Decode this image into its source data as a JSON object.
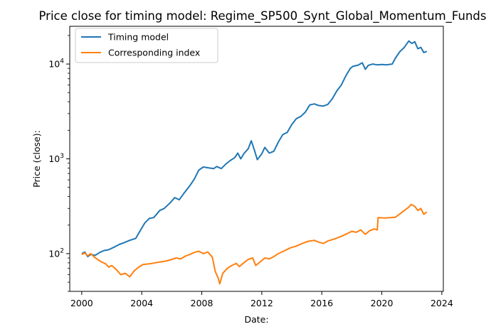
{
  "chart_data": {
    "type": "line",
    "title": "Price close for timing model: Regime_SP500_Synt_Global_Momentum_Funds",
    "xlabel": "Date:",
    "ylabel": "Price (close):",
    "yscale": "log",
    "xlim": [
      1999.2,
      2024.1
    ],
    "ylim": [
      40,
      25000
    ],
    "x_ticks": [
      2000,
      2004,
      2008,
      2012,
      2016,
      2020,
      2024
    ],
    "x_tick_labels": [
      "2000",
      "2004",
      "2008",
      "2012",
      "2016",
      "2020",
      "2024"
    ],
    "y_ticks": [
      100,
      1000,
      10000
    ],
    "y_tick_base": "10",
    "y_tick_exponents": [
      "2",
      "3",
      "4"
    ],
    "legend_position": "upper-left",
    "grid": false,
    "series": [
      {
        "name": "Timing model",
        "color": "#1f77b4",
        "points": [
          [
            2000.0,
            100
          ],
          [
            2000.2,
            104
          ],
          [
            2000.4,
            93
          ],
          [
            2000.6,
            98
          ],
          [
            2000.9,
            96
          ],
          [
            2001.2,
            103
          ],
          [
            2001.5,
            108
          ],
          [
            2001.8,
            110
          ],
          [
            2002.2,
            118
          ],
          [
            2002.5,
            125
          ],
          [
            2002.8,
            130
          ],
          [
            2003.2,
            138
          ],
          [
            2003.6,
            145
          ],
          [
            2003.9,
            175
          ],
          [
            2004.2,
            210
          ],
          [
            2004.5,
            235
          ],
          [
            2004.8,
            240
          ],
          [
            2005.2,
            285
          ],
          [
            2005.5,
            300
          ],
          [
            2005.9,
            345
          ],
          [
            2006.2,
            390
          ],
          [
            2006.5,
            370
          ],
          [
            2006.8,
            430
          ],
          [
            2007.2,
            520
          ],
          [
            2007.5,
            610
          ],
          [
            2007.8,
            760
          ],
          [
            2008.1,
            820
          ],
          [
            2008.5,
            800
          ],
          [
            2008.8,
            790
          ],
          [
            2009.0,
            830
          ],
          [
            2009.3,
            790
          ],
          [
            2009.6,
            880
          ],
          [
            2009.9,
            960
          ],
          [
            2010.2,
            1030
          ],
          [
            2010.4,
            1150
          ],
          [
            2010.6,
            1000
          ],
          [
            2010.8,
            1130
          ],
          [
            2011.1,
            1280
          ],
          [
            2011.3,
            1550
          ],
          [
            2011.5,
            1250
          ],
          [
            2011.7,
            980
          ],
          [
            2012.0,
            1130
          ],
          [
            2012.2,
            1320
          ],
          [
            2012.5,
            1150
          ],
          [
            2012.8,
            1200
          ],
          [
            2013.1,
            1500
          ],
          [
            2013.4,
            1800
          ],
          [
            2013.7,
            1900
          ],
          [
            2014.0,
            2300
          ],
          [
            2014.3,
            2650
          ],
          [
            2014.6,
            2800
          ],
          [
            2014.9,
            3100
          ],
          [
            2015.2,
            3700
          ],
          [
            2015.5,
            3800
          ],
          [
            2015.8,
            3650
          ],
          [
            2016.1,
            3600
          ],
          [
            2016.4,
            3750
          ],
          [
            2016.7,
            4300
          ],
          [
            2017.0,
            5200
          ],
          [
            2017.3,
            6000
          ],
          [
            2017.6,
            7500
          ],
          [
            2017.9,
            9000
          ],
          [
            2018.1,
            9500
          ],
          [
            2018.4,
            9700
          ],
          [
            2018.7,
            10300
          ],
          [
            2018.9,
            8800
          ],
          [
            2019.1,
            9700
          ],
          [
            2019.4,
            10000
          ],
          [
            2019.7,
            9800
          ],
          [
            2020.0,
            9900
          ],
          [
            2020.3,
            9800
          ],
          [
            2020.7,
            10000
          ],
          [
            2020.9,
            11500
          ],
          [
            2021.2,
            13500
          ],
          [
            2021.5,
            15000
          ],
          [
            2021.8,
            17500
          ],
          [
            2022.0,
            16500
          ],
          [
            2022.2,
            17200
          ],
          [
            2022.4,
            14500
          ],
          [
            2022.6,
            15000
          ],
          [
            2022.8,
            13200
          ],
          [
            2023.0,
            13600
          ]
        ]
      },
      {
        "name": "Corresponding index",
        "color": "#ff7f0e",
        "points": [
          [
            2000.0,
            98
          ],
          [
            2000.2,
            102
          ],
          [
            2000.4,
            95
          ],
          [
            2000.6,
            100
          ],
          [
            2000.8,
            93
          ],
          [
            2001.0,
            88
          ],
          [
            2001.3,
            82
          ],
          [
            2001.6,
            78
          ],
          [
            2001.8,
            72
          ],
          [
            2002.0,
            75
          ],
          [
            2002.3,
            68
          ],
          [
            2002.6,
            60
          ],
          [
            2002.9,
            62
          ],
          [
            2003.2,
            57
          ],
          [
            2003.5,
            66
          ],
          [
            2003.8,
            72
          ],
          [
            2004.1,
            77
          ],
          [
            2004.5,
            78
          ],
          [
            2004.9,
            80
          ],
          [
            2005.3,
            82
          ],
          [
            2005.7,
            84
          ],
          [
            2006.0,
            87
          ],
          [
            2006.3,
            90
          ],
          [
            2006.6,
            88
          ],
          [
            2006.9,
            94
          ],
          [
            2007.2,
            98
          ],
          [
            2007.5,
            103
          ],
          [
            2007.8,
            106
          ],
          [
            2008.1,
            100
          ],
          [
            2008.4,
            104
          ],
          [
            2008.7,
            92
          ],
          [
            2008.9,
            65
          ],
          [
            2009.1,
            55
          ],
          [
            2009.2,
            48
          ],
          [
            2009.4,
            62
          ],
          [
            2009.7,
            70
          ],
          [
            2010.0,
            75
          ],
          [
            2010.3,
            79
          ],
          [
            2010.5,
            73
          ],
          [
            2010.8,
            80
          ],
          [
            2011.1,
            87
          ],
          [
            2011.4,
            90
          ],
          [
            2011.6,
            75
          ],
          [
            2011.9,
            82
          ],
          [
            2012.2,
            90
          ],
          [
            2012.5,
            88
          ],
          [
            2012.8,
            93
          ],
          [
            2013.1,
            100
          ],
          [
            2013.5,
            107
          ],
          [
            2013.9,
            115
          ],
          [
            2014.3,
            120
          ],
          [
            2014.7,
            128
          ],
          [
            2015.1,
            135
          ],
          [
            2015.5,
            138
          ],
          [
            2015.8,
            132
          ],
          [
            2016.1,
            128
          ],
          [
            2016.4,
            136
          ],
          [
            2016.8,
            142
          ],
          [
            2017.2,
            150
          ],
          [
            2017.6,
            160
          ],
          [
            2018.0,
            172
          ],
          [
            2018.3,
            168
          ],
          [
            2018.6,
            178
          ],
          [
            2018.9,
            160
          ],
          [
            2019.2,
            175
          ],
          [
            2019.5,
            182
          ],
          [
            2019.7,
            178
          ],
          [
            2019.75,
            240
          ],
          [
            2020.2,
            238
          ],
          [
            2020.6,
            240
          ],
          [
            2020.9,
            242
          ],
          [
            2021.2,
            262
          ],
          [
            2021.5,
            285
          ],
          [
            2021.8,
            310
          ],
          [
            2021.95,
            330
          ],
          [
            2022.2,
            315
          ],
          [
            2022.4,
            285
          ],
          [
            2022.6,
            300
          ],
          [
            2022.8,
            260
          ],
          [
            2023.0,
            275
          ]
        ]
      }
    ]
  }
}
